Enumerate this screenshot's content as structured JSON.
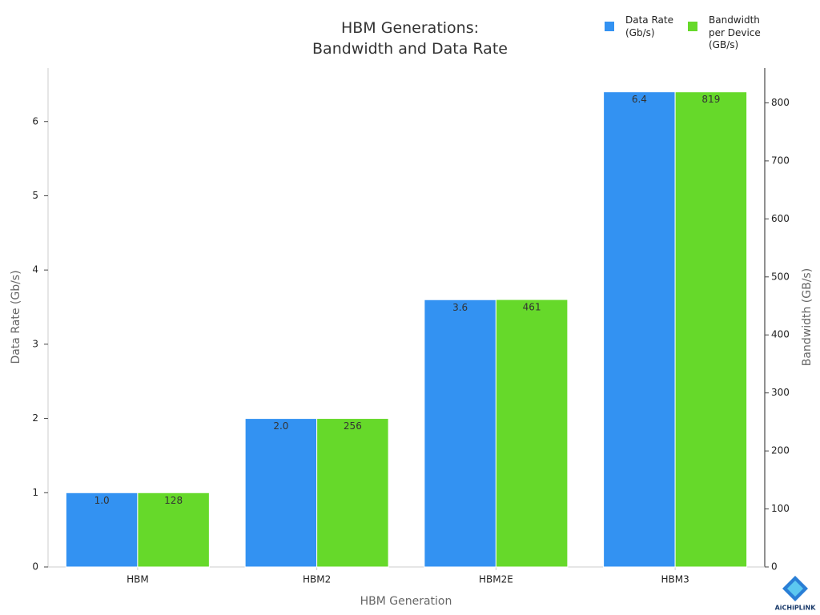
{
  "chart_data": {
    "type": "bar",
    "title": "HBM Generations:\nBandwidth and Data Rate",
    "x_label": "HBM Generation",
    "y_label": "Data Rate (Gb/s)",
    "y2_label": "Bandwidth (GB/s)",
    "categories": [
      "HBM",
      "HBM2",
      "HBM2E",
      "HBM3"
    ],
    "series": [
      {
        "name": "Data Rate\n(Gb/s)",
        "color": "#3392f2",
        "values": [
          1.0,
          2.0,
          3.6,
          6.4
        ],
        "value_labels": [
          "1.0",
          "2.0",
          "3.6",
          "6.4"
        ]
      },
      {
        "name": "Bandwidth\nper Device\n(GB/s)",
        "color": "#66d92a",
        "axis": "y2",
        "values": [
          128,
          256,
          461,
          819
        ]
      }
    ],
    "ylim": [
      0,
      6.72
    ],
    "yticks": [
      0,
      1,
      2,
      3,
      4,
      5,
      6
    ],
    "y2lim": [
      0,
      860
    ],
    "y2ticks": [
      0,
      100,
      200,
      300,
      400,
      500,
      600,
      700,
      800
    ],
    "legend": "upper right",
    "watermark": "AiCHiPLiNK"
  }
}
